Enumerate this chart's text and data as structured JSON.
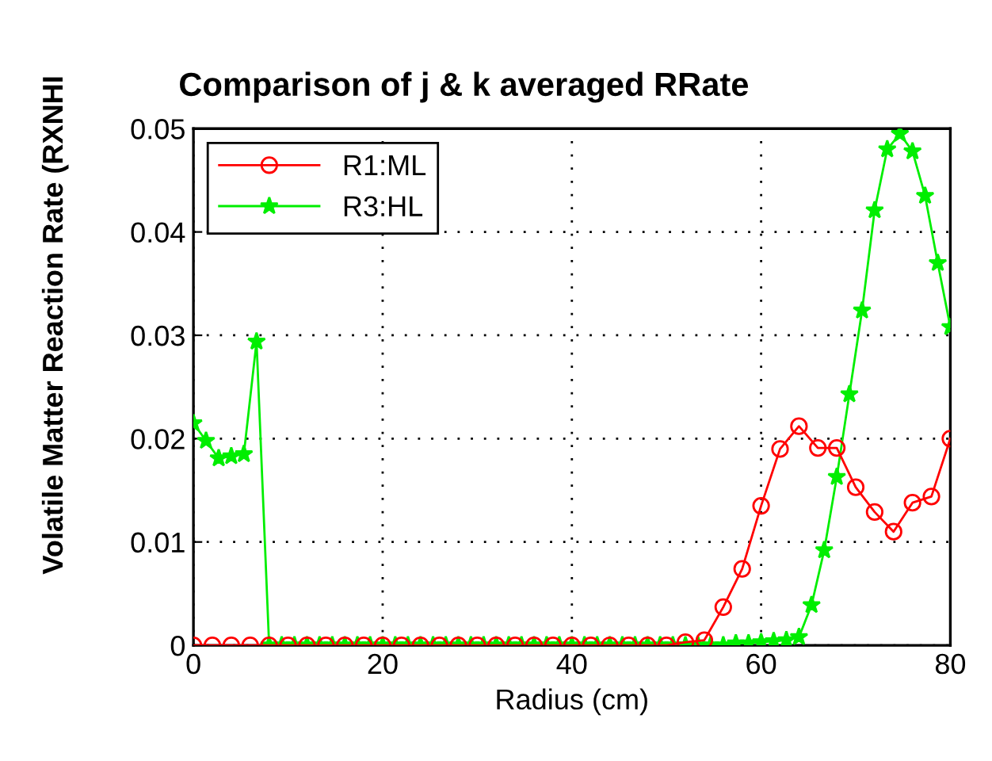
{
  "chart_data": {
    "type": "line",
    "title": "Comparison of j & k averaged RRate",
    "xlabel": "Radius (cm)",
    "ylabel": "Volatile Matter Reaction Rate (RXNHI",
    "xlim": [
      0,
      80
    ],
    "xticks": [
      0,
      20,
      40,
      60,
      80
    ],
    "ylim": [
      0,
      0.05
    ],
    "yticks": [
      {
        "value": 0,
        "label": "0"
      },
      0.01,
      0.02,
      0.03,
      0.04,
      0.05
    ],
    "grid": true,
    "legend": "top left",
    "line_style": "solid",
    "series": [
      {
        "name": "R1:ML",
        "color": "#ff0000",
        "marker": "circle",
        "x": [
          0,
          2,
          4,
          6,
          8,
          10,
          12,
          14,
          16,
          18,
          20,
          22,
          24,
          26,
          28,
          30,
          32,
          34,
          36,
          38,
          40,
          42,
          44,
          46,
          48,
          50,
          52,
          54,
          56,
          58,
          60,
          62,
          64,
          66,
          68,
          70,
          72,
          74,
          76,
          78,
          80
        ],
        "values": [
          0,
          0,
          0,
          0,
          0,
          0,
          0,
          0,
          0,
          0,
          0,
          0,
          0,
          0,
          0,
          0,
          0,
          0,
          0,
          0,
          0,
          0,
          0,
          0,
          0,
          0,
          0.0003,
          0.0005,
          0.0037,
          0.0074,
          0.0135,
          0.019,
          0.0212,
          0.0191,
          0.0191,
          0.0153,
          0.0129,
          0.011,
          0.0138,
          0.0144,
          0.02
        ]
      },
      {
        "name": "R3:HL",
        "color": "#00ee00",
        "marker": "star",
        "x": [
          0,
          1.33,
          2.67,
          4,
          5.33,
          6.67,
          8,
          9.33,
          10.67,
          12,
          13.33,
          14.67,
          16,
          17.33,
          18.67,
          20,
          21.33,
          22.67,
          24,
          25.33,
          26.67,
          28,
          29.33,
          30.67,
          32,
          33.33,
          34.67,
          36,
          37.33,
          38.67,
          40,
          41.33,
          42.67,
          44,
          45.33,
          46.67,
          48,
          49.33,
          50.67,
          52,
          53.33,
          54.67,
          56,
          57.33,
          58.67,
          60,
          61.33,
          62.67,
          64,
          65.33,
          66.67,
          68,
          69.33,
          70.67,
          72,
          73.33,
          74.67,
          76,
          77.33,
          78.67,
          80
        ],
        "values": [
          0.0215,
          0.0198,
          0.0181,
          0.0183,
          0.0185,
          0.0294,
          0,
          0,
          0,
          0,
          0,
          0,
          0,
          0,
          0,
          0,
          0,
          0,
          0,
          0,
          0,
          0,
          0,
          0,
          0,
          0,
          0,
          0,
          0,
          0,
          0,
          0,
          0,
          0,
          0,
          0,
          0,
          0,
          0,
          0,
          0,
          0,
          0,
          0.0002,
          0.0002,
          0.0003,
          0.0004,
          0.0005,
          0.0008,
          0.0039,
          0.0092,
          0.0163,
          0.0243,
          0.0324,
          0.0421,
          0.048,
          0.0495,
          0.0478,
          0.0435,
          0.037,
          0.0308
        ]
      }
    ]
  }
}
